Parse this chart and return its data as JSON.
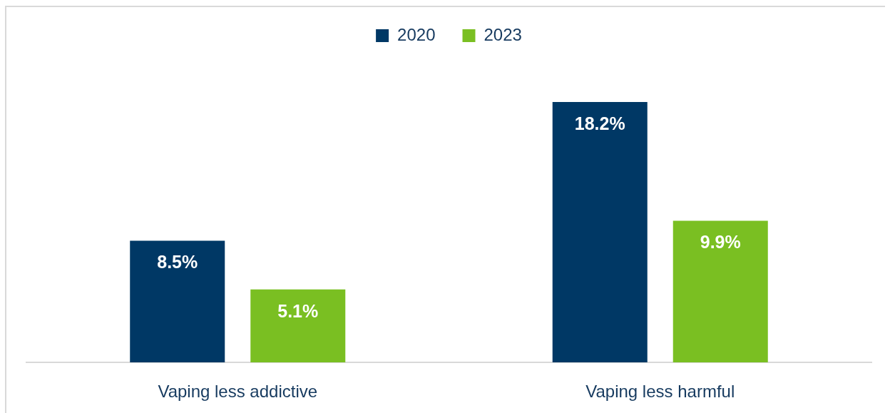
{
  "chart_data": {
    "type": "bar",
    "categories": [
      "Vaping less addictive",
      "Vaping less harmful"
    ],
    "series": [
      {
        "name": "2020",
        "color": "#003865",
        "values": [
          8.5,
          18.2
        ],
        "value_labels": [
          "8.5%",
          "18.2%"
        ]
      },
      {
        "name": "2023",
        "color": "#7abf22",
        "values": [
          5.1,
          9.9
        ],
        "value_labels": [
          "5.1%",
          "9.9%"
        ]
      }
    ],
    "legend": "top",
    "grid": false
  }
}
